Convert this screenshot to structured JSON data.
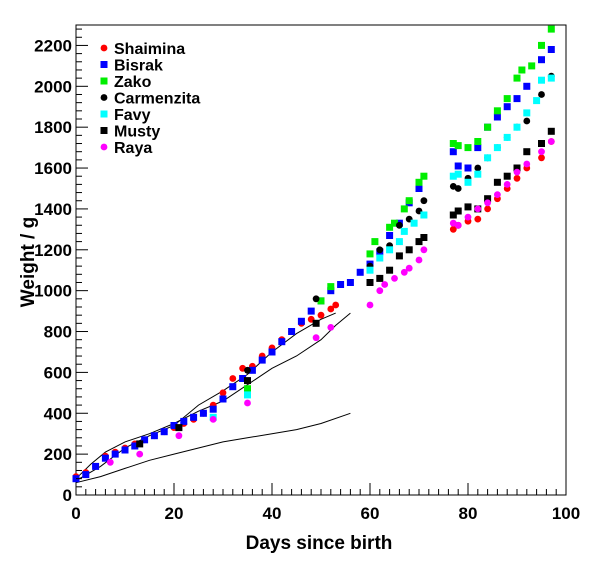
{
  "chart_data": {
    "type": "scatter",
    "title": "",
    "xlabel": "Days since birth",
    "ylabel": "Weight / g",
    "xlim": [
      0,
      100
    ],
    "ylim": [
      0,
      2300
    ],
    "x_ticks": [
      0,
      20,
      40,
      60,
      80,
      100
    ],
    "y_ticks": [
      0,
      200,
      400,
      600,
      800,
      1000,
      1200,
      1400,
      1600,
      1800,
      2000,
      2200
    ],
    "grid": false,
    "legend_position": "top-left",
    "series": [
      {
        "name": "Shaimina",
        "color": "#ff0000",
        "marker": "circle",
        "points": [
          [
            0,
            90
          ],
          [
            2,
            110
          ],
          [
            4,
            140
          ],
          [
            6,
            190
          ],
          [
            8,
            210
          ],
          [
            10,
            230
          ],
          [
            12,
            250
          ],
          [
            14,
            270
          ],
          [
            16,
            290
          ],
          [
            18,
            310
          ],
          [
            20,
            330
          ],
          [
            22,
            350
          ],
          [
            24,
            370
          ],
          [
            26,
            400
          ],
          [
            28,
            440
          ],
          [
            30,
            500
          ],
          [
            32,
            570
          ],
          [
            34,
            620
          ],
          [
            36,
            630
          ],
          [
            38,
            680
          ],
          [
            40,
            720
          ],
          [
            42,
            760
          ],
          [
            44,
            800
          ],
          [
            46,
            840
          ],
          [
            48,
            860
          ],
          [
            50,
            880
          ],
          [
            52,
            910
          ],
          [
            53,
            930
          ],
          [
            77,
            1300
          ],
          [
            78,
            1320
          ],
          [
            80,
            1340
          ],
          [
            82,
            1350
          ],
          [
            84,
            1400
          ],
          [
            86,
            1450
          ],
          [
            88,
            1500
          ],
          [
            90,
            1550
          ],
          [
            92,
            1600
          ],
          [
            95,
            1650
          ],
          [
            97,
            1730
          ]
        ]
      },
      {
        "name": "Bisrak",
        "color": "#0000ff",
        "marker": "square",
        "points": [
          [
            0,
            80
          ],
          [
            2,
            100
          ],
          [
            4,
            140
          ],
          [
            6,
            180
          ],
          [
            8,
            200
          ],
          [
            10,
            220
          ],
          [
            12,
            240
          ],
          [
            14,
            270
          ],
          [
            16,
            290
          ],
          [
            18,
            310
          ],
          [
            20,
            340
          ],
          [
            22,
            360
          ],
          [
            24,
            380
          ],
          [
            26,
            400
          ],
          [
            28,
            420
          ],
          [
            30,
            470
          ],
          [
            32,
            530
          ],
          [
            34,
            570
          ],
          [
            36,
            610
          ],
          [
            38,
            660
          ],
          [
            40,
            700
          ],
          [
            42,
            750
          ],
          [
            44,
            800
          ],
          [
            46,
            850
          ],
          [
            48,
            900
          ],
          [
            50,
            950
          ],
          [
            52,
            1000
          ],
          [
            54,
            1030
          ],
          [
            56,
            1040
          ],
          [
            58,
            1090
          ],
          [
            60,
            1130
          ],
          [
            62,
            1190
          ],
          [
            64,
            1270
          ],
          [
            66,
            1330
          ],
          [
            68,
            1430
          ],
          [
            70,
            1500
          ],
          [
            77,
            1680
          ],
          [
            78,
            1610
          ],
          [
            80,
            1600
          ],
          [
            82,
            1700
          ],
          [
            84,
            1800
          ],
          [
            86,
            1850
          ],
          [
            88,
            1900
          ],
          [
            90,
            1940
          ],
          [
            92,
            2000
          ],
          [
            95,
            2130
          ],
          [
            97,
            2180
          ]
        ]
      },
      {
        "name": "Zako",
        "color": "#00ee00",
        "marker": "square",
        "points": [
          [
            35,
            520
          ],
          [
            50,
            950
          ],
          [
            52,
            1020
          ],
          [
            60,
            1180
          ],
          [
            61,
            1240
          ],
          [
            64,
            1310
          ],
          [
            65,
            1330
          ],
          [
            67,
            1400
          ],
          [
            68,
            1440
          ],
          [
            70,
            1530
          ],
          [
            71,
            1560
          ],
          [
            77,
            1720
          ],
          [
            78,
            1710
          ],
          [
            80,
            1700
          ],
          [
            82,
            1730
          ],
          [
            84,
            1800
          ],
          [
            86,
            1880
          ],
          [
            88,
            1940
          ],
          [
            90,
            2040
          ],
          [
            91,
            2080
          ],
          [
            93,
            2100
          ],
          [
            95,
            2200
          ],
          [
            97,
            2280
          ]
        ]
      },
      {
        "name": "Carmenzita",
        "color": "#000000",
        "marker": "circle",
        "points": [
          [
            35,
            610
          ],
          [
            49,
            960
          ],
          [
            60,
            1120
          ],
          [
            62,
            1200
          ],
          [
            64,
            1220
          ],
          [
            66,
            1320
          ],
          [
            68,
            1350
          ],
          [
            70,
            1390
          ],
          [
            71,
            1440
          ],
          [
            77,
            1510
          ],
          [
            78,
            1500
          ],
          [
            80,
            1550
          ],
          [
            82,
            1600
          ],
          [
            84,
            1650
          ],
          [
            86,
            1700
          ],
          [
            88,
            1750
          ],
          [
            90,
            1800
          ],
          [
            92,
            1830
          ],
          [
            95,
            1960
          ],
          [
            97,
            2050
          ]
        ]
      },
      {
        "name": "Favy",
        "color": "#00ffff",
        "marker": "square",
        "points": [
          [
            28,
            380
          ],
          [
            35,
            490
          ],
          [
            60,
            1100
          ],
          [
            62,
            1160
          ],
          [
            64,
            1200
          ],
          [
            66,
            1240
          ],
          [
            67,
            1290
          ],
          [
            69,
            1330
          ],
          [
            71,
            1370
          ],
          [
            77,
            1560
          ],
          [
            78,
            1570
          ],
          [
            80,
            1530
          ],
          [
            82,
            1570
          ],
          [
            84,
            1650
          ],
          [
            86,
            1700
          ],
          [
            88,
            1750
          ],
          [
            90,
            1800
          ],
          [
            92,
            1870
          ],
          [
            94,
            1930
          ],
          [
            95,
            2030
          ],
          [
            97,
            2040
          ]
        ]
      },
      {
        "name": "Musty",
        "color": "#000000",
        "marker": "square",
        "points": [
          [
            13,
            250
          ],
          [
            21,
            330
          ],
          [
            35,
            560
          ],
          [
            49,
            840
          ],
          [
            60,
            1040
          ],
          [
            62,
            1060
          ],
          [
            64,
            1100
          ],
          [
            66,
            1170
          ],
          [
            68,
            1200
          ],
          [
            70,
            1240
          ],
          [
            71,
            1260
          ],
          [
            77,
            1370
          ],
          [
            78,
            1390
          ],
          [
            80,
            1410
          ],
          [
            82,
            1400
          ],
          [
            84,
            1450
          ],
          [
            86,
            1530
          ],
          [
            88,
            1560
          ],
          [
            90,
            1600
          ],
          [
            92,
            1680
          ],
          [
            95,
            1720
          ],
          [
            97,
            1780
          ]
        ]
      },
      {
        "name": "Raya",
        "color": "#ff00ff",
        "marker": "circle",
        "points": [
          [
            7,
            160
          ],
          [
            13,
            200
          ],
          [
            21,
            290
          ],
          [
            28,
            370
          ],
          [
            35,
            450
          ],
          [
            49,
            770
          ],
          [
            52,
            820
          ],
          [
            60,
            930
          ],
          [
            62,
            1000
          ],
          [
            63,
            1030
          ],
          [
            65,
            1060
          ],
          [
            67,
            1090
          ],
          [
            68,
            1110
          ],
          [
            70,
            1150
          ],
          [
            71,
            1200
          ],
          [
            77,
            1330
          ],
          [
            78,
            1320
          ],
          [
            80,
            1360
          ],
          [
            82,
            1400
          ],
          [
            84,
            1430
          ],
          [
            86,
            1470
          ],
          [
            88,
            1520
          ],
          [
            90,
            1580
          ],
          [
            92,
            1620
          ],
          [
            95,
            1680
          ],
          [
            97,
            1730
          ]
        ]
      }
    ],
    "reference_curves": [
      {
        "points": [
          [
            0,
            80
          ],
          [
            3,
            150
          ],
          [
            6,
            210
          ],
          [
            10,
            260
          ],
          [
            15,
            300
          ],
          [
            20,
            350
          ],
          [
            25,
            410
          ],
          [
            30,
            460
          ],
          [
            35,
            540
          ],
          [
            40,
            620
          ],
          [
            45,
            680
          ],
          [
            50,
            760
          ],
          [
            53,
            830
          ],
          [
            56,
            890
          ]
        ]
      },
      {
        "points": [
          [
            0,
            70
          ],
          [
            5,
            140
          ],
          [
            10,
            230
          ],
          [
            15,
            290
          ],
          [
            20,
            340
          ],
          [
            25,
            440
          ],
          [
            30,
            510
          ],
          [
            35,
            590
          ],
          [
            40,
            700
          ],
          [
            45,
            790
          ],
          [
            50,
            860
          ],
          [
            53,
            890
          ]
        ]
      },
      {
        "points": [
          [
            0,
            60
          ],
          [
            5,
            90
          ],
          [
            10,
            130
          ],
          [
            15,
            170
          ],
          [
            20,
            200
          ],
          [
            25,
            230
          ],
          [
            30,
            260
          ],
          [
            35,
            280
          ],
          [
            40,
            300
          ],
          [
            45,
            320
          ],
          [
            50,
            350
          ],
          [
            56,
            400
          ]
        ]
      }
    ]
  }
}
